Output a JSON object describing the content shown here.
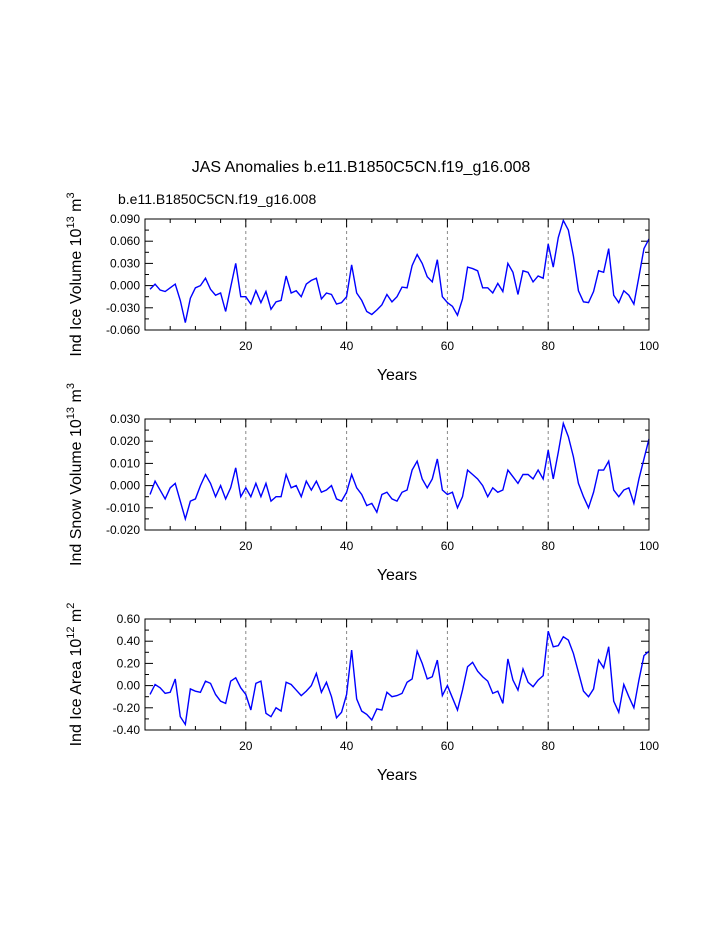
{
  "page": {
    "title": "JAS Anomalies b.e11.B1850C5CN.f19_g16.008",
    "case_label": "b.e11.B1850C5CN.f19_g16.008",
    "case_label_color": "#0000ff",
    "line_color": "#0000ff",
    "grid_color": "#888888"
  },
  "chart_data": [
    {
      "type": "line",
      "ylabel": {
        "main": "Ind Ice Volume 10",
        "exp": "13",
        "unit": " m",
        "unit_exp": "3"
      },
      "xlabel": "Years",
      "xlim": [
        0,
        100
      ],
      "ylim": [
        -0.06,
        0.09
      ],
      "xticks": [
        {
          "v": 20,
          "label": "20"
        },
        {
          "v": 40,
          "label": "40"
        },
        {
          "v": 60,
          "label": "60"
        },
        {
          "v": 80,
          "label": "80"
        },
        {
          "v": 100,
          "label": "100"
        }
      ],
      "yticks": [
        {
          "v": 0.09,
          "label": "0.090"
        },
        {
          "v": 0.06,
          "label": "0.060"
        },
        {
          "v": 0.03,
          "label": "0.030"
        },
        {
          "v": 0.0,
          "label": "0.000"
        },
        {
          "v": -0.03,
          "label": "-0.030"
        },
        {
          "v": -0.06,
          "label": "-0.060"
        }
      ],
      "grid_x": [
        20,
        40,
        60,
        80
      ],
      "series": [
        {
          "name": "b.e11.B1850C5CN.f19_g16.008",
          "values": [
            -0.005,
            0.002,
            -0.006,
            -0.008,
            -0.003,
            0.002,
            -0.02,
            -0.05,
            -0.017,
            -0.003,
            0.0,
            0.01,
            -0.005,
            -0.013,
            -0.01,
            -0.035,
            -0.002,
            0.03,
            -0.015,
            -0.015,
            -0.025,
            -0.007,
            -0.023,
            -0.008,
            -0.032,
            -0.022,
            -0.02,
            0.013,
            -0.01,
            -0.007,
            -0.015,
            0.002,
            0.007,
            0.01,
            -0.018,
            -0.01,
            -0.012,
            -0.025,
            -0.023,
            -0.015,
            0.028,
            -0.01,
            -0.02,
            -0.035,
            -0.039,
            -0.033,
            -0.026,
            -0.012,
            -0.022,
            -0.015,
            -0.002,
            -0.003,
            0.027,
            0.042,
            0.03,
            0.012,
            0.005,
            0.035,
            -0.015,
            -0.023,
            -0.028,
            -0.04,
            -0.018,
            0.025,
            0.023,
            0.02,
            -0.003,
            -0.003,
            -0.01,
            0.003,
            -0.008,
            0.03,
            0.018,
            -0.012,
            0.02,
            0.018,
            0.005,
            0.013,
            0.01,
            0.056,
            0.025,
            0.065,
            0.088,
            0.075,
            0.04,
            -0.007,
            -0.022,
            -0.023,
            -0.008,
            0.02,
            0.018,
            0.05,
            -0.013,
            -0.023,
            -0.007,
            -0.013,
            -0.025,
            0.012,
            0.05,
            0.063
          ]
        }
      ]
    },
    {
      "type": "line",
      "ylabel": {
        "main": "Ind Snow Volume 10",
        "exp": "13",
        "unit": " m",
        "unit_exp": "3"
      },
      "xlabel": "Years",
      "xlim": [
        0,
        100
      ],
      "ylim": [
        -0.02,
        0.03
      ],
      "xticks": [
        {
          "v": 20,
          "label": "20"
        },
        {
          "v": 40,
          "label": "40"
        },
        {
          "v": 60,
          "label": "60"
        },
        {
          "v": 80,
          "label": "80"
        },
        {
          "v": 100,
          "label": "100"
        }
      ],
      "yticks": [
        {
          "v": 0.03,
          "label": "0.030"
        },
        {
          "v": 0.02,
          "label": "0.020"
        },
        {
          "v": 0.01,
          "label": "0.010"
        },
        {
          "v": 0.0,
          "label": "0.000"
        },
        {
          "v": -0.01,
          "label": "-0.010"
        },
        {
          "v": -0.02,
          "label": "-0.020"
        }
      ],
      "grid_x": [
        20,
        40,
        60,
        80
      ],
      "series": [
        {
          "name": "b.e11.B1850C5CN.f19_g16.008",
          "values": [
            -0.004,
            0.002,
            -0.002,
            -0.006,
            -0.001,
            0.001,
            -0.007,
            -0.015,
            -0.007,
            -0.006,
            0.0,
            0.005,
            0.001,
            -0.005,
            0.0,
            -0.006,
            -0.001,
            0.008,
            -0.005,
            -0.001,
            -0.005,
            0.001,
            -0.005,
            0.001,
            -0.007,
            -0.005,
            -0.005,
            0.005,
            -0.001,
            0.0,
            -0.005,
            0.002,
            -0.002,
            0.002,
            -0.003,
            -0.002,
            0.0,
            -0.006,
            -0.007,
            -0.003,
            0.005,
            -0.001,
            -0.004,
            -0.009,
            -0.008,
            -0.012,
            -0.004,
            -0.003,
            -0.006,
            -0.007,
            -0.003,
            -0.002,
            0.007,
            0.011,
            0.003,
            -0.001,
            0.003,
            0.012,
            -0.002,
            -0.004,
            -0.003,
            -0.01,
            -0.005,
            0.007,
            0.005,
            0.003,
            0.0,
            -0.005,
            -0.001,
            -0.003,
            -0.002,
            0.007,
            0.004,
            0.001,
            0.005,
            0.005,
            0.003,
            0.007,
            0.003,
            0.016,
            0.003,
            0.015,
            0.028,
            0.022,
            0.013,
            0.001,
            -0.005,
            -0.01,
            -0.003,
            0.007,
            0.007,
            0.011,
            -0.002,
            -0.005,
            -0.002,
            -0.001,
            -0.008,
            0.003,
            0.012,
            0.021
          ]
        }
      ]
    },
    {
      "type": "line",
      "ylabel": {
        "main": "Ind Ice Area 10",
        "exp": "12",
        "unit": " m",
        "unit_exp": "2"
      },
      "xlabel": "Years",
      "xlim": [
        0,
        100
      ],
      "ylim": [
        -0.4,
        0.6
      ],
      "xticks": [
        {
          "v": 20,
          "label": "20"
        },
        {
          "v": 40,
          "label": "40"
        },
        {
          "v": 60,
          "label": "60"
        },
        {
          "v": 80,
          "label": "80"
        },
        {
          "v": 100,
          "label": "100"
        }
      ],
      "yticks": [
        {
          "v": 0.6,
          "label": "0.60"
        },
        {
          "v": 0.4,
          "label": "0.40"
        },
        {
          "v": 0.2,
          "label": "0.20"
        },
        {
          "v": 0.0,
          "label": "0.00"
        },
        {
          "v": -0.2,
          "label": "-0.20"
        },
        {
          "v": -0.4,
          "label": "-0.40"
        }
      ],
      "grid_x": [
        20,
        40,
        60,
        80
      ],
      "series": [
        {
          "name": "b.e11.B1850C5CN.f19_g16.008",
          "values": [
            -0.08,
            0.01,
            -0.02,
            -0.07,
            -0.06,
            0.06,
            -0.28,
            -0.35,
            -0.03,
            -0.05,
            -0.06,
            0.04,
            0.02,
            -0.08,
            -0.14,
            -0.16,
            0.04,
            0.07,
            -0.02,
            -0.08,
            -0.22,
            0.02,
            0.04,
            -0.25,
            -0.28,
            -0.2,
            -0.23,
            0.03,
            0.01,
            -0.04,
            -0.09,
            -0.05,
            0.0,
            0.11,
            -0.06,
            0.03,
            -0.1,
            -0.29,
            -0.24,
            -0.08,
            0.32,
            -0.12,
            -0.23,
            -0.26,
            -0.31,
            -0.21,
            -0.22,
            -0.06,
            -0.1,
            -0.09,
            -0.07,
            0.03,
            0.06,
            0.31,
            0.2,
            0.06,
            0.08,
            0.23,
            -0.09,
            0.0,
            -0.11,
            -0.22,
            -0.04,
            0.17,
            0.21,
            0.13,
            0.08,
            0.04,
            -0.07,
            -0.05,
            -0.16,
            0.24,
            0.05,
            -0.04,
            0.15,
            0.03,
            -0.01,
            0.05,
            0.09,
            0.49,
            0.35,
            0.36,
            0.44,
            0.41,
            0.29,
            0.12,
            -0.05,
            -0.1,
            -0.03,
            0.23,
            0.16,
            0.35,
            -0.14,
            -0.24,
            0.01,
            -0.1,
            -0.2,
            0.05,
            0.27,
            0.31
          ]
        }
      ]
    }
  ]
}
